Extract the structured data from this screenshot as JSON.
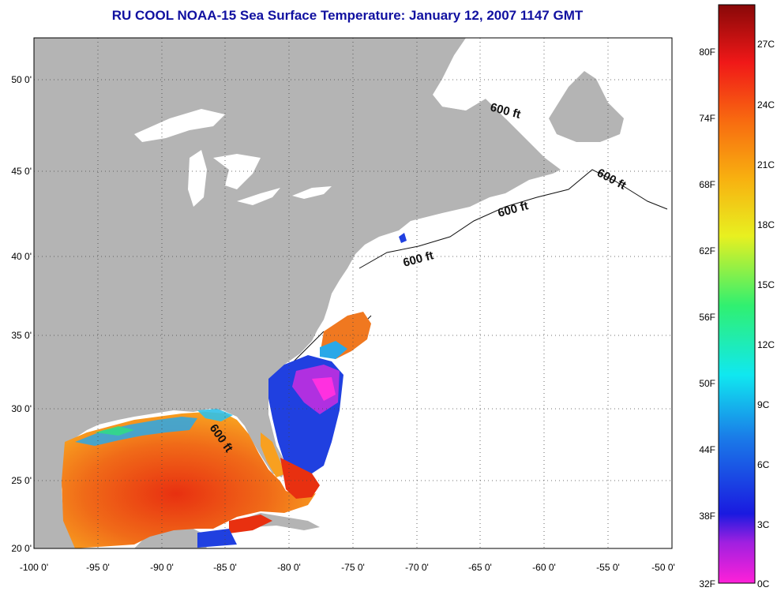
{
  "title": "RU COOL  NOAA-15  Sea Surface Temperature:  January 12, 2007 1147 GMT",
  "map": {
    "lon_ticks": [
      "-100 0'",
      "-95 0'",
      "-90 0'",
      "-85 0'",
      "-80 0'",
      "-75 0'",
      "-70 0'",
      "-65 0'",
      "-60 0'",
      "-55 0'",
      "-50 0'"
    ],
    "lat_ticks": [
      "50 0'",
      "45 0'",
      "40 0'",
      "35 0'",
      "30 0'",
      "25 0'",
      "20 0'"
    ],
    "contour_label": "600 ft",
    "colors": {
      "land": "#b4b4b4",
      "water": "#ffffff"
    }
  },
  "colorbar": {
    "f_labels": [
      "80F",
      "74F",
      "68F",
      "62F",
      "56F",
      "50F",
      "44F",
      "38F",
      "32F"
    ],
    "c_labels": [
      "27C",
      "24C",
      "21C",
      "18C",
      "15C",
      "12C",
      "9C",
      "6C",
      "3C",
      "0C"
    ]
  }
}
